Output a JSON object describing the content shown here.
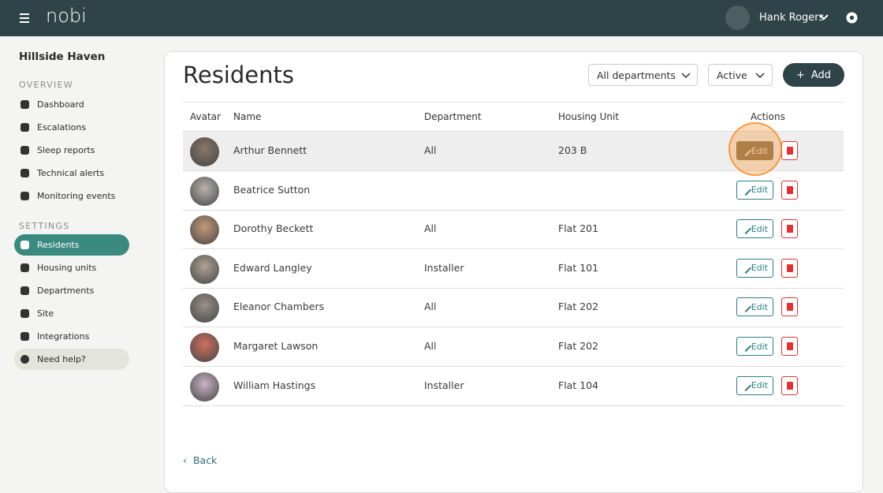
{
  "header": {
    "brand": "nobi",
    "user": "Hank Rogers"
  },
  "sidebar": {
    "site": "Hillside Haven",
    "sections": [
      {
        "title": "OVERVIEW",
        "items": [
          "Dashboard",
          "Escalations",
          "Sleep reports",
          "Technical alerts",
          "Monitoring events"
        ]
      },
      {
        "title": "SETTINGS",
        "items": [
          "Residents",
          "Housing units",
          "Departments",
          "Site",
          "Integrations"
        ]
      }
    ],
    "help": "Need help?"
  },
  "main": {
    "title": "Residents",
    "department_filter": "All departments",
    "status_filter": "Active",
    "add_button": "Add",
    "table": {
      "columns": [
        "Avatar",
        "Name",
        "Department",
        "Housing Unit",
        "Actions"
      ],
      "rows": [
        [
          "Arthur Bennett",
          "All",
          "203 B"
        ],
        [
          "Beatrice Sutton",
          null,
          null
        ],
        [
          "Dorothy Beckett",
          "All",
          "Flat 201"
        ],
        [
          "Edward Langley",
          "Installer",
          "Flat 101"
        ],
        [
          "Eleanor Chambers",
          "All",
          "Flat 202"
        ],
        [
          "Margaret Lawson",
          "All",
          "Flat 202"
        ],
        [
          "William Hastings",
          "Installer",
          "Flat 104"
        ]
      ],
      "edit_label": "Edit"
    },
    "back": "Back"
  }
}
